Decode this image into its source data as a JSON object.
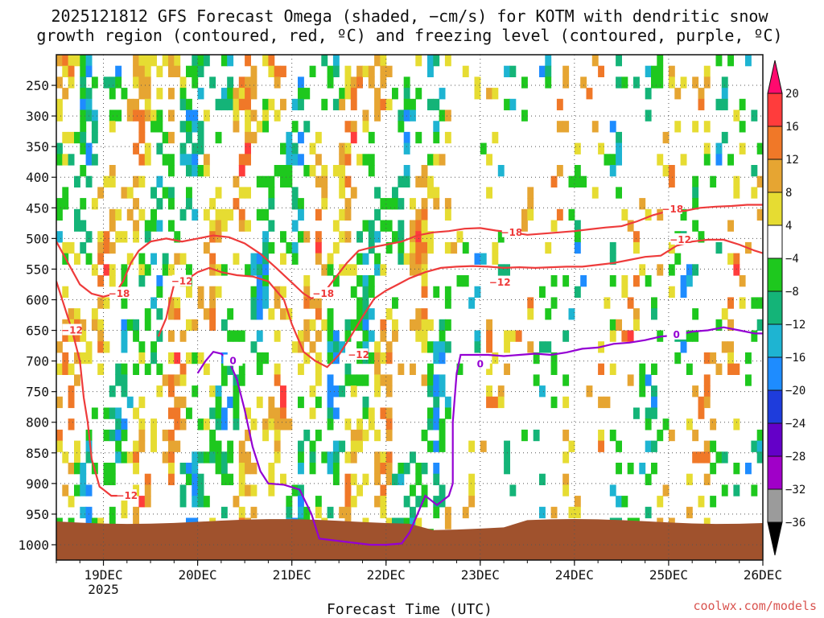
{
  "chart_data": {
    "type": "heatmap",
    "title_line1": "2025121812 GFS Forecast Omega (shaded, −cm/s) for KOTM with dendritic snow",
    "title_line2": "growth region (contoured, red, ºC) and freezing level (contoured, purple, ºC)",
    "xlabel": "Forecast Time (UTC)",
    "ylabel": "",
    "credit": "coolwx.com/models",
    "year_label": "2025",
    "y_ticks": [
      250,
      300,
      350,
      400,
      450,
      500,
      550,
      600,
      650,
      700,
      750,
      800,
      850,
      900,
      950,
      1000
    ],
    "y_range": [
      200,
      1025
    ],
    "x_ticks": [
      {
        "hour": 12,
        "label": "19DEC"
      },
      {
        "hour": 36,
        "label": "20DEC"
      },
      {
        "hour": 60,
        "label": "21DEC"
      },
      {
        "hour": 84,
        "label": "22DEC"
      },
      {
        "hour": 108,
        "label": "23DEC"
      },
      {
        "hour": 132,
        "label": "24DEC"
      },
      {
        "hour": 156,
        "label": "25DEC"
      },
      {
        "hour": 180,
        "label": "26DEC"
      }
    ],
    "x_range": [
      0,
      180
    ],
    "colorbar": {
      "labels": [
        "20",
        "16",
        "12",
        "8",
        "4",
        "−4",
        "−8",
        "−12",
        "−16",
        "−20",
        "−24",
        "−28",
        "−32",
        "−36"
      ],
      "colors": [
        "#ff0a6e",
        "#ff3c3c",
        "#f07828",
        "#e6a532",
        "#e6dc32",
        "#ffffff",
        "#1ec81e",
        "#14b478",
        "#1eb4d2",
        "#1e8cff",
        "#1e3cdc",
        "#6400c8",
        "#a000c8",
        "#9b9b9b",
        "#000000"
      ]
    },
    "colors": {
      "ground": "#a0522d",
      "dgz_contour": "#ee3b3b",
      "freezing_contour": "#9400d3",
      "grid": "#555555"
    },
    "contours": {
      "dgz_upper": {
        "label": "−18",
        "points": [
          [
            0,
            505
          ],
          [
            3,
            540
          ],
          [
            6,
            575
          ],
          [
            9,
            590
          ],
          [
            12,
            595
          ],
          [
            15,
            590
          ],
          [
            17,
            570
          ],
          [
            19,
            540
          ],
          [
            21,
            520
          ],
          [
            24,
            505
          ],
          [
            28,
            500
          ],
          [
            32,
            505
          ],
          [
            36,
            500
          ],
          [
            40,
            495
          ],
          [
            44,
            498
          ],
          [
            48,
            508
          ],
          [
            52,
            525
          ],
          [
            56,
            548
          ],
          [
            60,
            572
          ],
          [
            63,
            590
          ],
          [
            65,
            598
          ],
          [
            68,
            590
          ],
          [
            71,
            565
          ],
          [
            74,
            540
          ],
          [
            77,
            520
          ],
          [
            80,
            515
          ],
          [
            84,
            510
          ],
          [
            88,
            505
          ],
          [
            92,
            495
          ],
          [
            96,
            490
          ],
          [
            100,
            488
          ],
          [
            104,
            484
          ],
          [
            108,
            483
          ],
          [
            112,
            487
          ],
          [
            116,
            490
          ],
          [
            120,
            494
          ],
          [
            124,
            492
          ],
          [
            128,
            490
          ],
          [
            132,
            488
          ],
          [
            136,
            485
          ],
          [
            140,
            482
          ],
          [
            144,
            480
          ],
          [
            148,
            472
          ],
          [
            152,
            462
          ],
          [
            156,
            455
          ],
          [
            160,
            455
          ],
          [
            164,
            450
          ],
          [
            168,
            448
          ],
          [
            172,
            447
          ],
          [
            176,
            445
          ],
          [
            180,
            445
          ]
        ],
        "label_at": [
          [
            16,
            590
          ],
          [
            68,
            590
          ],
          [
            116,
            490
          ],
          [
            157,
            452
          ]
        ]
      },
      "dgz_lower": {
        "label": "−12",
        "points": [
          [
            0,
            570
          ],
          [
            2,
            610
          ],
          [
            4,
            650
          ],
          [
            6,
            700
          ],
          [
            7,
            760
          ],
          [
            8,
            800
          ],
          [
            9,
            860
          ],
          [
            11,
            905
          ],
          [
            14,
            920
          ],
          [
            17,
            920
          ]
        ],
        "label_at": [
          [
            4,
            650
          ],
          [
            18,
            920
          ]
        ]
      },
      "dgz_lower_b": {
        "label": "−12",
        "points": [
          [
            26,
            660
          ],
          [
            28,
            630
          ],
          [
            29,
            600
          ],
          [
            30,
            575
          ],
          [
            33,
            568
          ],
          [
            36,
            555
          ],
          [
            39,
            548
          ],
          [
            42,
            555
          ],
          [
            46,
            560
          ],
          [
            50,
            562
          ],
          [
            54,
            570
          ],
          [
            58,
            600
          ],
          [
            60,
            640
          ],
          [
            63,
            685
          ],
          [
            66,
            700
          ],
          [
            69,
            710
          ],
          [
            72,
            690
          ],
          [
            75,
            660
          ],
          [
            78,
            628
          ],
          [
            81,
            598
          ],
          [
            84,
            585
          ],
          [
            87,
            575
          ],
          [
            90,
            565
          ],
          [
            94,
            555
          ],
          [
            98,
            548
          ],
          [
            102,
            546
          ],
          [
            106,
            545
          ],
          [
            110,
            546
          ],
          [
            114,
            548
          ],
          [
            118,
            547
          ],
          [
            122,
            548
          ],
          [
            126,
            547
          ],
          [
            130,
            546
          ],
          [
            134,
            546
          ],
          [
            138,
            543
          ],
          [
            142,
            540
          ],
          [
            146,
            535
          ],
          [
            150,
            530
          ],
          [
            154,
            528
          ],
          [
            158,
            512
          ],
          [
            162,
            505
          ],
          [
            166,
            502
          ],
          [
            170,
            502
          ],
          [
            174,
            510
          ],
          [
            178,
            520
          ],
          [
            180,
            524
          ]
        ],
        "label_at": [
          [
            32,
            570
          ],
          [
            77,
            690
          ],
          [
            113,
            572
          ],
          [
            159,
            502
          ]
        ]
      },
      "freezing": {
        "label": "0",
        "points": [
          [
            36,
            720
          ],
          [
            38,
            700
          ],
          [
            40,
            685
          ],
          [
            42,
            688
          ],
          [
            44,
            700
          ],
          [
            46,
            730
          ],
          [
            48,
            780
          ],
          [
            50,
            840
          ],
          [
            52,
            880
          ],
          [
            54,
            900
          ],
          [
            58,
            902
          ],
          [
            62,
            910
          ],
          [
            65,
            950
          ],
          [
            67,
            990
          ],
          [
            80,
            1000
          ],
          [
            84,
            1000
          ],
          [
            88,
            998
          ],
          [
            90,
            980
          ],
          [
            92,
            950
          ],
          [
            94,
            920
          ],
          [
            97,
            935
          ],
          [
            100,
            920
          ],
          [
            101,
            900
          ],
          [
            101,
            800
          ],
          [
            102,
            720
          ],
          [
            103,
            690
          ],
          [
            106,
            690
          ],
          [
            110,
            690
          ],
          [
            114,
            692
          ],
          [
            118,
            690
          ],
          [
            122,
            688
          ],
          [
            126,
            690
          ],
          [
            130,
            686
          ],
          [
            134,
            680
          ],
          [
            138,
            678
          ],
          [
            142,
            672
          ],
          [
            146,
            670
          ],
          [
            150,
            666
          ],
          [
            154,
            660
          ],
          [
            158,
            658
          ],
          [
            162,
            652
          ],
          [
            166,
            650
          ],
          [
            170,
            645
          ],
          [
            174,
            650
          ],
          [
            178,
            655
          ],
          [
            180,
            655
          ]
        ],
        "label_at": [
          [
            45,
            700
          ],
          [
            108,
            705
          ],
          [
            158,
            657
          ]
        ]
      }
    }
  }
}
